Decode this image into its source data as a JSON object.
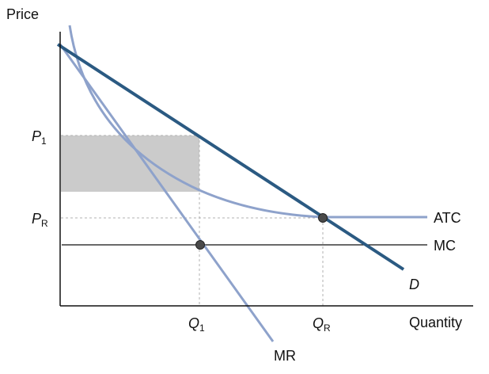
{
  "axes": {
    "y_label": "Price",
    "x_label": "Quantity"
  },
  "price_labels": {
    "p1_main": "P",
    "p1_sub": "1",
    "pr_main": "P",
    "pr_sub": "R"
  },
  "quantity_labels": {
    "q1_main": "Q",
    "q1_sub": "1",
    "qr_main": "Q",
    "qr_sub": "R"
  },
  "curve_labels": {
    "atc": "ATC",
    "mc": "MC",
    "demand": "D",
    "mr": "MR"
  },
  "colors": {
    "demand": "#2b5a82",
    "curves": "#8ea2cb",
    "shade": "#cbcbcb",
    "point": "#4a4a4a",
    "axis": "#111111",
    "guide": "#b0b0b0"
  }
}
